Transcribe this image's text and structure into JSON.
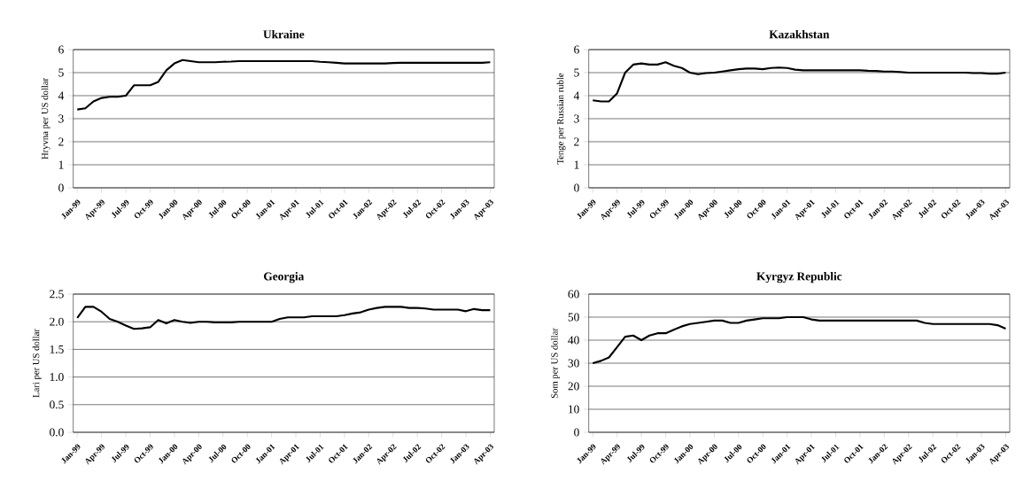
{
  "chart_data": [
    {
      "type": "line",
      "title": "Ukraine",
      "ylabel": "Hryvna per US dollar",
      "categories": [
        "Jan-99",
        null,
        null,
        "Apr-99",
        null,
        null,
        "Jul-99",
        null,
        null,
        "Oct-99",
        null,
        null,
        "Jan-00",
        null,
        null,
        "Apr-00",
        null,
        null,
        "Jul-00",
        null,
        null,
        "Oct-00",
        null,
        null,
        "Jan-01",
        null,
        null,
        "Apr-01",
        null,
        null,
        "Jul-01",
        null,
        null,
        "Oct-01",
        null,
        null,
        "Jan-02",
        null,
        null,
        "Apr-02",
        null,
        null,
        "Jul-02",
        null,
        null,
        "Oct-02",
        null,
        null,
        "Jan-03",
        null,
        null,
        "Apr-03"
      ],
      "values": [
        3.4,
        3.45,
        3.75,
        3.9,
        3.95,
        3.95,
        4.0,
        4.45,
        4.45,
        4.45,
        4.6,
        5.1,
        5.4,
        5.55,
        5.5,
        5.45,
        5.45,
        5.45,
        5.47,
        5.48,
        5.5,
        5.5,
        5.5,
        5.5,
        5.5,
        5.5,
        5.5,
        5.5,
        5.5,
        5.5,
        5.47,
        5.45,
        5.43,
        5.4,
        5.4,
        5.4,
        5.4,
        5.4,
        5.4,
        5.42,
        5.43,
        5.43,
        5.43,
        5.43,
        5.43,
        5.43,
        5.43,
        5.43,
        5.43,
        5.43,
        5.43,
        5.45
      ],
      "color": "#000000",
      "ylim": [
        0,
        6
      ],
      "yticks": [
        0,
        1,
        2,
        3,
        4,
        5,
        6
      ],
      "grid": "y"
    },
    {
      "type": "line",
      "title": "Kazakhstan",
      "ylabel": "Tenge per Russian ruble",
      "categories": [
        "Jan-99",
        null,
        null,
        "Apr-99",
        null,
        null,
        "Jul-99",
        null,
        null,
        "Oct-99",
        null,
        null,
        "Jan-00",
        null,
        null,
        "Apr-00",
        null,
        null,
        "Jul-00",
        null,
        null,
        "Oct-00",
        null,
        null,
        "Jan-01",
        null,
        null,
        "Apr-01",
        null,
        null,
        "Jul-01",
        null,
        null,
        "Oct-01",
        null,
        null,
        "Jan-02",
        null,
        null,
        "Apr-02",
        null,
        null,
        "Jul-02",
        null,
        null,
        "Oct-02",
        null,
        null,
        "Jan-03",
        null,
        null,
        "Apr-03"
      ],
      "values": [
        3.8,
        3.75,
        3.75,
        4.1,
        5.0,
        5.35,
        5.4,
        5.35,
        5.35,
        5.45,
        5.3,
        5.2,
        5.0,
        4.93,
        4.98,
        5.0,
        5.05,
        5.1,
        5.15,
        5.18,
        5.18,
        5.15,
        5.2,
        5.22,
        5.2,
        5.13,
        5.1,
        5.1,
        5.1,
        5.1,
        5.1,
        5.1,
        5.1,
        5.1,
        5.08,
        5.07,
        5.05,
        5.05,
        5.03,
        5.0,
        5.0,
        5.0,
        5.0,
        5.0,
        5.0,
        5.0,
        5.0,
        4.98,
        4.98,
        4.95,
        4.95,
        5.0
      ],
      "color": "#000000",
      "ylim": [
        0,
        6
      ],
      "yticks": [
        0,
        1,
        2,
        3,
        4,
        5,
        6
      ],
      "grid": "y"
    },
    {
      "type": "line",
      "title": "Georgia",
      "ylabel": "Lari per US dollar",
      "categories": [
        "Jan-99",
        null,
        null,
        "Apr-99",
        null,
        null,
        "Jul-99",
        null,
        null,
        "Oct-99",
        null,
        null,
        "Jan-00",
        null,
        null,
        "Apr-00",
        null,
        null,
        "Jul-00",
        null,
        null,
        "Oct-00",
        null,
        null,
        "Jan-01",
        null,
        null,
        "Apr-01",
        null,
        null,
        "Jul-01",
        null,
        null,
        "Oct-01",
        null,
        null,
        "Jan-02",
        null,
        null,
        "Apr-02",
        null,
        null,
        "Jul-02",
        null,
        null,
        "Oct-02",
        null,
        null,
        "Jan-03",
        null,
        null,
        "Apr-03"
      ],
      "values": [
        2.07,
        2.27,
        2.27,
        2.18,
        2.05,
        2.0,
        1.93,
        1.87,
        1.88,
        1.9,
        2.03,
        1.97,
        2.03,
        2.0,
        1.98,
        2.0,
        2.0,
        1.99,
        1.99,
        1.99,
        2.0,
        2.0,
        2.0,
        2.0,
        2.0,
        2.05,
        2.08,
        2.08,
        2.08,
        2.1,
        2.1,
        2.1,
        2.1,
        2.12,
        2.15,
        2.17,
        2.22,
        2.25,
        2.27,
        2.27,
        2.27,
        2.25,
        2.25,
        2.24,
        2.22,
        2.22,
        2.22,
        2.22,
        2.19,
        2.23,
        2.21,
        2.21
      ],
      "color": "#000000",
      "ylim": [
        0,
        2.5
      ],
      "yticks": [
        {
          "value": 0,
          "label": "0.0"
        },
        {
          "value": 0.5,
          "label": "0.5"
        },
        {
          "value": 1,
          "label": "1.0"
        },
        {
          "value": 1.5,
          "label": "1.5"
        },
        {
          "value": 2,
          "label": "2.0"
        },
        {
          "value": 2.5,
          "label": "2.5"
        }
      ],
      "grid": "y"
    },
    {
      "type": "line",
      "title": "Kyrgyz Republic",
      "ylabel": "Som per US dollar",
      "categories": [
        "Jan-99",
        null,
        null,
        "Apr-99",
        null,
        null,
        "Jul-99",
        null,
        null,
        "Oct-99",
        null,
        null,
        "Jan-00",
        null,
        null,
        "Apr-00",
        null,
        null,
        "Jul-00",
        null,
        null,
        "Oct-00",
        null,
        null,
        "Jan-01",
        null,
        null,
        "Apr-01",
        null,
        null,
        "Jul-01",
        null,
        null,
        "Oct-01",
        null,
        null,
        "Jan-02",
        null,
        null,
        "Apr-02",
        null,
        null,
        "Jul-02",
        null,
        null,
        "Oct-02",
        null,
        null,
        "Jan-03",
        null,
        null,
        "Apr-03"
      ],
      "values": [
        30,
        31,
        32.5,
        37,
        41.5,
        42,
        40,
        42,
        43,
        43,
        44.5,
        46,
        47,
        47.5,
        48,
        48.5,
        48.5,
        47.5,
        47.5,
        48.5,
        49,
        49.5,
        49.5,
        49.5,
        50,
        50,
        50,
        49,
        48.5,
        48.5,
        48.5,
        48.5,
        48.5,
        48.5,
        48.5,
        48.5,
        48.5,
        48.5,
        48.5,
        48.5,
        48.5,
        47.5,
        47,
        47,
        47,
        47,
        47,
        47,
        47,
        47,
        46.5,
        45
      ],
      "color": "#000000",
      "ylim": [
        0,
        60
      ],
      "yticks": [
        0,
        10,
        20,
        30,
        40,
        50,
        60
      ],
      "grid": "y"
    }
  ]
}
